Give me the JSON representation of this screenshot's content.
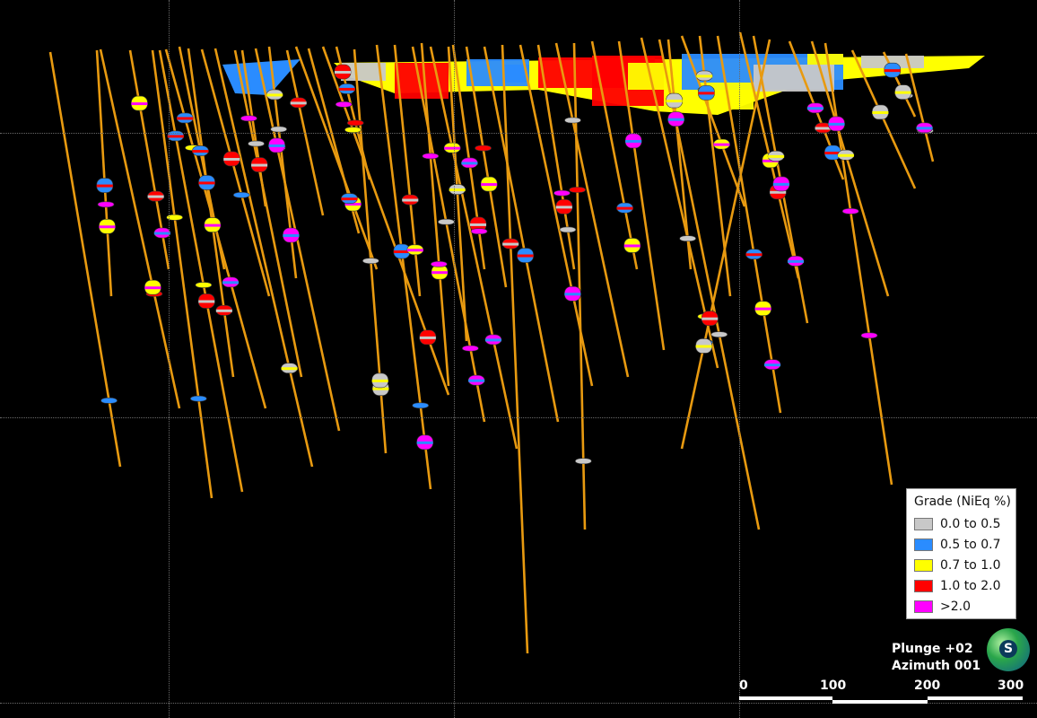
{
  "legend": {
    "title": "Grade (NiEq %)",
    "items": [
      {
        "label": "0.0 to 0.5",
        "color": "#c8c8c8"
      },
      {
        "label": "0.5 to 0.7",
        "color": "#2a8cff"
      },
      {
        "label": "0.7 to 1.0",
        "color": "#ffff00"
      },
      {
        "label": "1.0 to 2.0",
        "color": "#ff0000"
      },
      {
        "label": ">2.0",
        "color": "#ff00ff"
      }
    ]
  },
  "view": {
    "plunge": "Plunge +02",
    "azimuth": "Azimuth 001",
    "compass_letter": "S"
  },
  "scale_bar": {
    "labels": [
      "0",
      "100",
      "200",
      "300"
    ]
  },
  "colors": {
    "drillhole": "#e89a10",
    "background": "#000000"
  }
}
